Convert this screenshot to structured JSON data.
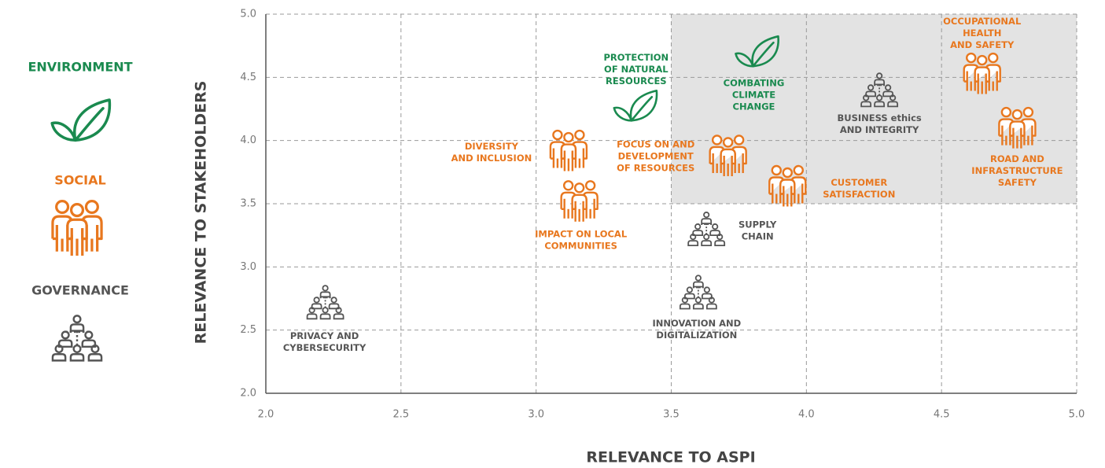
{
  "chart_data": {
    "type": "scatter",
    "xlabel": "RELEVANCE TO ASPI",
    "ylabel": "RELEVANCE TO STAKEHOLDERS",
    "xlim": [
      2.0,
      5.0
    ],
    "ylim": [
      2.0,
      5.0
    ],
    "xticks": [
      {
        "value": 2,
        "label": "2.0"
      },
      {
        "value": 2.5,
        "label": "2.5"
      },
      {
        "value": 3,
        "label": "3.0"
      },
      {
        "value": 3.5,
        "label": "3.5"
      },
      {
        "value": 4,
        "label": "4.0"
      },
      {
        "value": 4.5,
        "label": "4.5"
      },
      {
        "value": 5,
        "label": "5.0"
      }
    ],
    "yticks": [
      {
        "value": 2,
        "label": "2.0"
      },
      {
        "value": 2.5,
        "label": "2.5"
      },
      {
        "value": 3,
        "label": "3.0"
      },
      {
        "value": 3.5,
        "label": "3.5"
      },
      {
        "value": 4,
        "label": "4.0"
      },
      {
        "value": 4.5,
        "label": "4.5"
      },
      {
        "value": 5,
        "label": "5.0"
      }
    ],
    "grid": true,
    "highlight": {
      "xlim": [
        3.5,
        5.0
      ],
      "ylim": [
        3.5,
        5.0
      ],
      "color": "#e3e3e3"
    },
    "series": [
      {
        "name": "ENVIRONMENT",
        "color": "#1a8a4f",
        "x": [
          3.82,
          3.37
        ],
        "y": [
          4.7,
          4.27
        ],
        "labels": [
          [
            "COMBATING",
            "CLIMATE",
            "CHANGE"
          ],
          [
            "PROTECTION",
            "OF NATURAL",
            "RESOURCES"
          ]
        ]
      },
      {
        "name": "SOCIAL",
        "color": "#e8771e",
        "x": [
          4.65,
          4.78,
          3.12,
          3.71,
          3.93,
          3.16
        ],
        "y": [
          4.53,
          4.1,
          3.92,
          3.88,
          3.64,
          3.52
        ],
        "labels": [
          [
            "OCCUPATIONAL",
            "HEALTH",
            "AND SAFETY"
          ],
          [
            "ROAD AND",
            "INFRASTRUCTURE",
            "SAFETY"
          ],
          [
            "DIVERSITY",
            "AND INCLUSION"
          ],
          [
            "FOCUS ON AND",
            "DEVELOPMENT",
            "OF RESOURCES"
          ],
          [
            "CUSTOMER",
            "SATISFACTION"
          ],
          [
            "IMPACT ON LOCAL",
            "COMMUNITIES"
          ]
        ]
      },
      {
        "name": "GOVERNANCE",
        "color": "#555555",
        "x": [
          4.27,
          3.63,
          3.6,
          2.22
        ],
        "y": [
          4.4,
          3.3,
          2.8,
          2.72
        ],
        "labels": [
          [
            "BUSINESS ethics",
            "AND INTEGRITY"
          ],
          [
            "SUPPLY",
            "CHAIN"
          ],
          [
            "INNOVATION AND",
            "DIGITALIZATION"
          ],
          [
            "PRIVACY AND",
            "CYBERSECURITY"
          ]
        ]
      }
    ]
  }
}
